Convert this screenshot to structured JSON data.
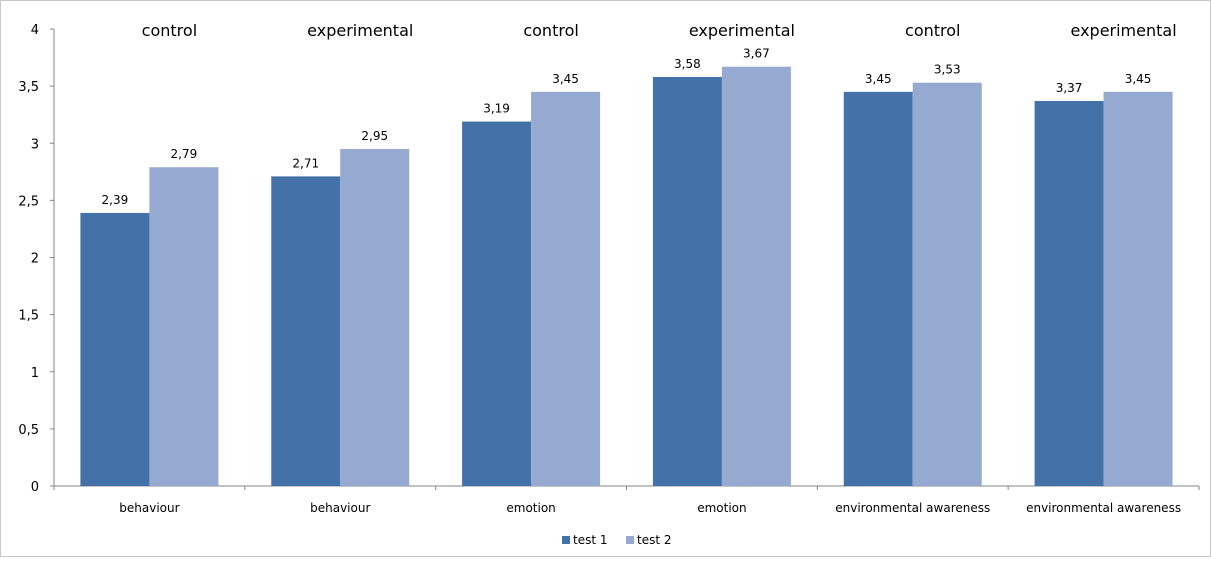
{
  "chart_data": {
    "type": "bar",
    "categories": [
      "behaviour",
      "behaviour",
      "emotion",
      "emotion",
      "environmental awareness",
      "environmental awareness"
    ],
    "groups": [
      "control",
      "experimental",
      "control",
      "experimental",
      "control",
      "experimental"
    ],
    "series": [
      {
        "name": "test 1",
        "values": [
          2.39,
          2.71,
          3.19,
          3.58,
          3.45,
          3.37
        ],
        "labels": [
          "2,39",
          "2,71",
          "3,19",
          "3,58",
          "3,45",
          "3,37"
        ],
        "color": "#4472a8"
      },
      {
        "name": "test 2",
        "values": [
          2.79,
          2.95,
          3.45,
          3.67,
          3.53,
          3.45
        ],
        "labels": [
          "2,79",
          "2,95",
          "3,45",
          "3,67",
          "3,53",
          "3,45"
        ],
        "color": "#95a9d1"
      }
    ],
    "ylim": [
      0,
      4
    ],
    "yticks": [
      0,
      0.5,
      1,
      1.5,
      2,
      2.5,
      3,
      3.5,
      4
    ],
    "ytick_labels": [
      "0",
      "0,5",
      "1",
      "1,5",
      "2",
      "2,5",
      "3",
      "3,5",
      "4"
    ],
    "grid": false,
    "legend_position": "bottom-center"
  }
}
